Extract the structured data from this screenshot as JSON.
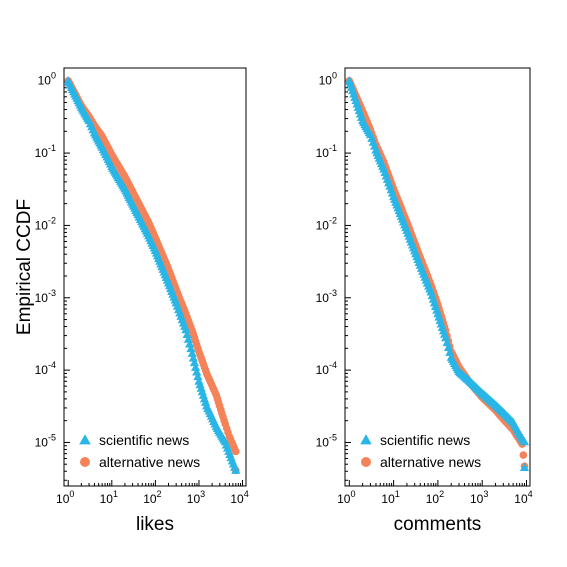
{
  "chart_data": [
    {
      "type": "scatter",
      "xlabel": "likes",
      "ylabel": "Empirical CCDF",
      "xscale": "log",
      "yscale": "log",
      "xlim": [
        0.8,
        12000
      ],
      "ylim": [
        2.5e-06,
        1.5
      ],
      "xticks": [
        {
          "value": 1,
          "base": "10",
          "exp": "0"
        },
        {
          "value": 10,
          "base": "10",
          "exp": "1"
        },
        {
          "value": 100,
          "base": "10",
          "exp": "2"
        },
        {
          "value": 1000,
          "base": "10",
          "exp": "3"
        },
        {
          "value": 10000,
          "base": "10",
          "exp": "4"
        }
      ],
      "yticks": [
        {
          "value": 1,
          "base": "10",
          "exp": "0"
        },
        {
          "value": 0.1,
          "base": "10",
          "exp": "-1"
        },
        {
          "value": 0.01,
          "base": "10",
          "exp": "-2"
        },
        {
          "value": 0.001,
          "base": "10",
          "exp": "-3"
        },
        {
          "value": 0.0001,
          "base": "10",
          "exp": "-4"
        },
        {
          "value": 1e-05,
          "base": "10",
          "exp": "-5"
        }
      ],
      "grid": false,
      "legend_position": "bottom-left",
      "series": [
        {
          "name": "scientific news",
          "marker": "triangle",
          "color": "#29b6e6",
          "points": [
            [
              1,
              1.0
            ],
            [
              2,
              0.43
            ],
            [
              3,
              0.28
            ],
            [
              4,
              0.19
            ],
            [
              6,
              0.12
            ],
            [
              10,
              0.065
            ],
            [
              20,
              0.032
            ],
            [
              40,
              0.014
            ],
            [
              70,
              0.0072
            ],
            [
              100,
              0.0045
            ],
            [
              200,
              0.0016
            ],
            [
              300,
              0.00085
            ],
            [
              500,
              0.00036
            ],
            [
              700,
              0.00017
            ],
            [
              1000,
              7e-05
            ],
            [
              1500,
              3.2e-05
            ],
            [
              2500,
              1.65e-05
            ],
            [
              4000,
              1.02e-05
            ],
            [
              7000,
              4.1e-06
            ]
          ]
        },
        {
          "name": "alternative news",
          "marker": "circle",
          "color": "#f4835a",
          "points": [
            [
              1,
              1.0
            ],
            [
              2,
              0.45
            ],
            [
              3,
              0.32
            ],
            [
              4,
              0.24
            ],
            [
              6,
              0.17
            ],
            [
              10,
              0.095
            ],
            [
              20,
              0.047
            ],
            [
              40,
              0.021
            ],
            [
              70,
              0.011
            ],
            [
              100,
              0.0067
            ],
            [
              200,
              0.0025
            ],
            [
              300,
              0.0013
            ],
            [
              500,
              0.0006
            ],
            [
              700,
              0.00035
            ],
            [
              1000,
              0.00018
            ],
            [
              1500,
              9e-05
            ],
            [
              2500,
              4.5e-05
            ],
            [
              4000,
              1.8e-05
            ],
            [
              5000,
              1.2e-05
            ],
            [
              7000,
              7.5e-06
            ],
            [
              7000,
              4.1e-06
            ]
          ]
        }
      ]
    },
    {
      "type": "scatter",
      "xlabel": "comments",
      "ylabel": "",
      "xscale": "log",
      "yscale": "log",
      "xlim": [
        0.8,
        12000
      ],
      "ylim": [
        2.5e-06,
        1.5
      ],
      "xticks": [
        {
          "value": 1,
          "base": "10",
          "exp": "0"
        },
        {
          "value": 10,
          "base": "10",
          "exp": "1"
        },
        {
          "value": 100,
          "base": "10",
          "exp": "2"
        },
        {
          "value": 1000,
          "base": "10",
          "exp": "3"
        },
        {
          "value": 10000,
          "base": "10",
          "exp": "4"
        }
      ],
      "yticks": [
        {
          "value": 1,
          "base": "10",
          "exp": "0"
        },
        {
          "value": 0.1,
          "base": "10",
          "exp": "-1"
        },
        {
          "value": 0.01,
          "base": "10",
          "exp": "-2"
        },
        {
          "value": 0.001,
          "base": "10",
          "exp": "-3"
        },
        {
          "value": 0.0001,
          "base": "10",
          "exp": "-4"
        },
        {
          "value": 1e-05,
          "base": "10",
          "exp": "-5"
        }
      ],
      "grid": false,
      "legend_position": "bottom-left",
      "series": [
        {
          "name": "scientific news",
          "marker": "triangle",
          "color": "#29b6e6",
          "points": [
            [
              1,
              1.0
            ],
            [
              2,
              0.28
            ],
            [
              3,
              0.18
            ],
            [
              4,
              0.11
            ],
            [
              6,
              0.06
            ],
            [
              10,
              0.025
            ],
            [
              20,
              0.0085
            ],
            [
              40,
              0.0028
            ],
            [
              70,
              0.0012
            ],
            [
              100,
              0.0006
            ],
            [
              150,
              0.00028
            ],
            [
              200,
              0.00015
            ],
            [
              300,
              9.5e-05
            ],
            [
              500,
              7.2e-05
            ],
            [
              1000,
              4.8e-05
            ],
            [
              2000,
              3.3e-05
            ],
            [
              3000,
              2.6e-05
            ],
            [
              5000,
              1.9e-05
            ],
            [
              7000,
              1.3e-05
            ],
            [
              9000,
              1.02e-05
            ],
            [
              9000,
              4.5e-06
            ]
          ]
        },
        {
          "name": "alternative news",
          "marker": "circle",
          "color": "#f4835a",
          "points": [
            [
              1,
              1.0
            ],
            [
              2,
              0.38
            ],
            [
              3,
              0.21
            ],
            [
              4,
              0.13
            ],
            [
              6,
              0.075
            ],
            [
              10,
              0.032
            ],
            [
              20,
              0.011
            ],
            [
              40,
              0.0036
            ],
            [
              70,
              0.0015
            ],
            [
              100,
              0.0008
            ],
            [
              150,
              0.00035
            ],
            [
              200,
              0.00018
            ],
            [
              300,
              0.00011
            ],
            [
              500,
              7e-05
            ],
            [
              1000,
              4.2e-05
            ],
            [
              2000,
              2.8e-05
            ],
            [
              3000,
              2.1e-05
            ],
            [
              5000,
              1.5e-05
            ],
            [
              6000,
              1.25e-05
            ],
            [
              8000,
              9.5e-06
            ],
            [
              9000,
              4.7e-06
            ]
          ]
        }
      ]
    }
  ]
}
